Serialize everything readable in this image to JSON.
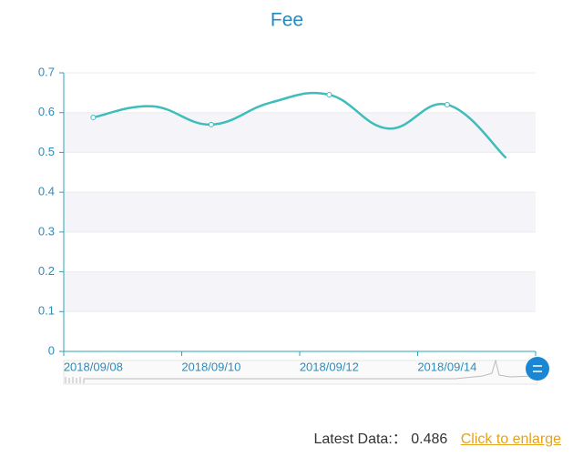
{
  "chart_data": {
    "type": "line",
    "title": "Fee",
    "categories": [
      "2018/09/08",
      null,
      "2018/09/10",
      null,
      "2018/09/12",
      null,
      "2018/09/14",
      null
    ],
    "series": [
      {
        "name": "Fee",
        "color": "#3dbdbb",
        "values": [
          0.588,
          0.616,
          0.57,
          0.625,
          0.645,
          0.56,
          0.62,
          0.486
        ]
      }
    ],
    "ylim": [
      0,
      0.7
    ],
    "yticks": [
      0,
      0.1,
      0.2,
      0.3,
      0.4,
      0.5,
      0.6,
      0.7
    ],
    "grid": true
  },
  "footer": {
    "label": "Latest Data:：",
    "value": "0.486",
    "link": "Click to enlarge"
  }
}
